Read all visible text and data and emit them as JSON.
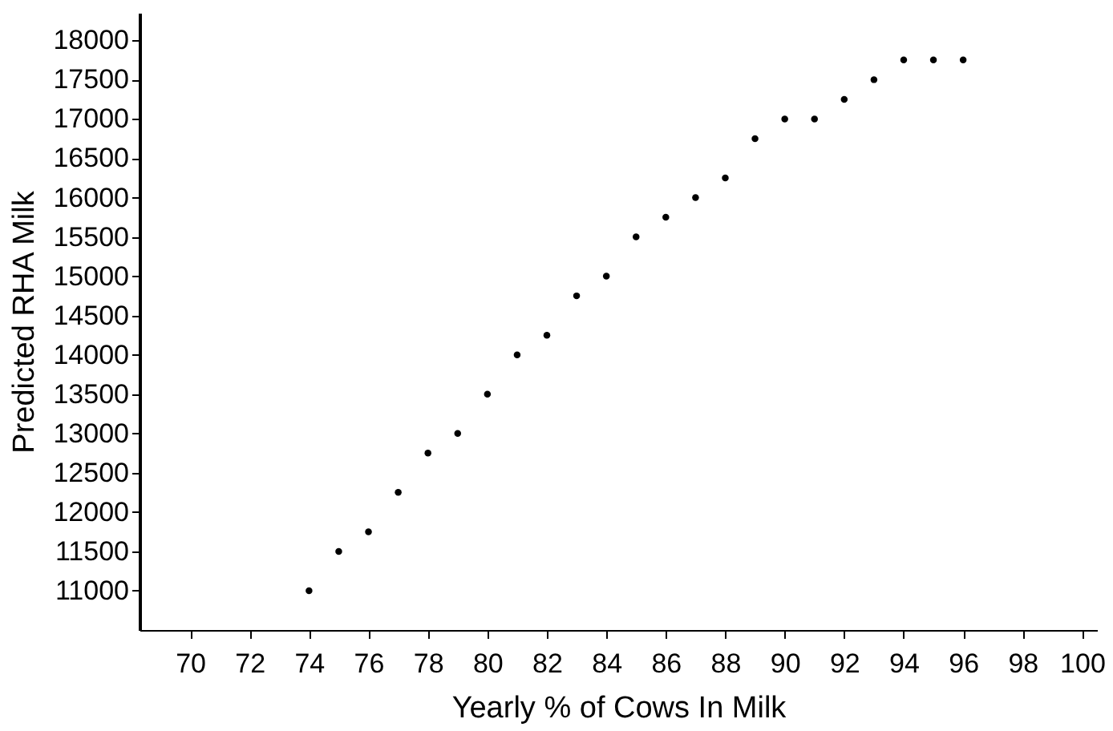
{
  "chart_data": {
    "type": "scatter",
    "xlabel": "Yearly % of Cows In Milk",
    "ylabel": "Predicted RHA Milk",
    "x": [
      74,
      75,
      76,
      77,
      78,
      79,
      80,
      81,
      82,
      83,
      84,
      85,
      86,
      87,
      88,
      89,
      90,
      91,
      92,
      93,
      94,
      95,
      96
    ],
    "series": [
      {
        "color": "#000000",
        "values": [
          11000,
          11500,
          11750,
          12250,
          12750,
          13000,
          13500,
          14000,
          14250,
          14750,
          15000,
          15500,
          15750,
          16000,
          16250,
          16750,
          17000,
          17000,
          17250,
          17500,
          17750,
          17750,
          17750
        ]
      }
    ],
    "xlim": [
      68.3,
      100.5
    ],
    "xticks": [
      70,
      72,
      74,
      76,
      78,
      80,
      82,
      84,
      86,
      88,
      90,
      92,
      94,
      96,
      98,
      100
    ],
    "ylim": [
      10500,
      18350
    ],
    "yticks": [
      11000,
      11500,
      12000,
      12500,
      13000,
      13500,
      14000,
      14500,
      15000,
      15500,
      16000,
      16500,
      17000,
      17500,
      18000
    ],
    "grid": false,
    "legend": false,
    "marker": "circle"
  }
}
